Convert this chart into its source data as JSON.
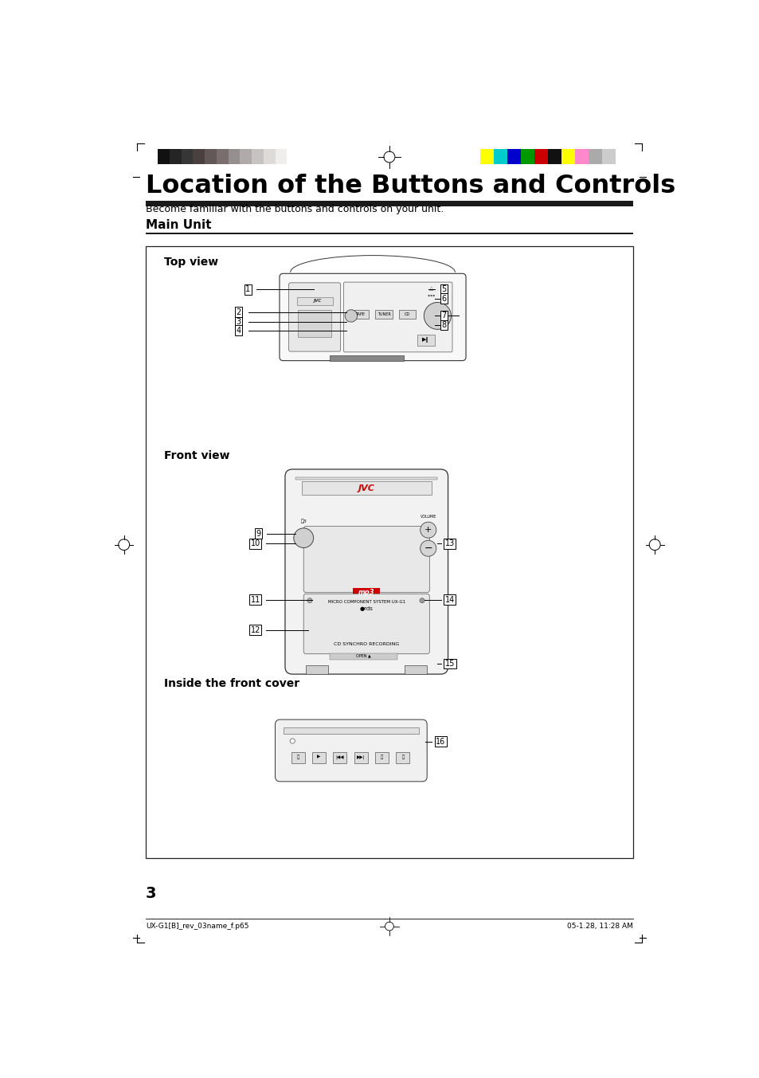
{
  "title": "Location of the Buttons and Controls",
  "subtitle": "Become familiar with the buttons and controls on your unit.",
  "section_title": "Main Unit",
  "page_number": "3",
  "footer_left": "UX-G1[B]_rev_03name_f.p65",
  "footer_page": "3",
  "footer_right": "05-1.28, 11:28 AM",
  "bg_color": "#ffffff",
  "gray_strip_colors": [
    "#111111",
    "#252525",
    "#363636",
    "#4a4040",
    "#635858",
    "#7a6e6e",
    "#968f8f",
    "#b0aaaa",
    "#c8c3c3",
    "#dedad8",
    "#f0eeed"
  ],
  "color_strip_colors": [
    "#ffff00",
    "#00cccc",
    "#0000cc",
    "#009900",
    "#cc0000",
    "#111111",
    "#ffff00",
    "#ff88cc",
    "#aaaaaa",
    "#cccccc"
  ],
  "top_view_label": "Top view",
  "front_view_label": "Front view",
  "inside_label": "Inside the front cover",
  "callouts_top_left": [
    "1",
    "2",
    "3",
    "4"
  ],
  "callouts_top_right": [
    "5",
    "6",
    "7",
    "8"
  ],
  "callouts_front_left": [
    "9",
    "10",
    "11",
    "12"
  ],
  "callouts_front_right": [
    "13",
    "14",
    "15"
  ],
  "callout_inside": [
    "16"
  ]
}
